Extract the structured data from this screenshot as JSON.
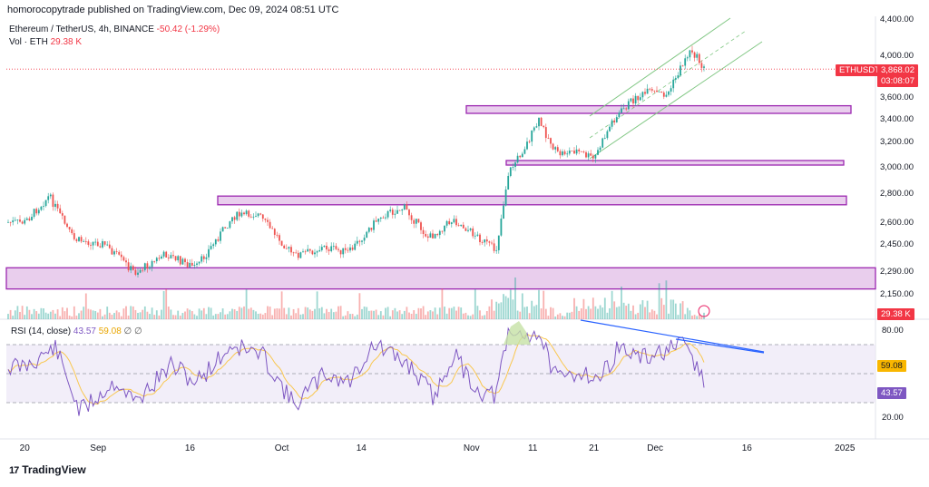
{
  "header": {
    "publisher_line": "homorocopytrade published on TradingView.com, Dec 09, 2024 08:51 UTC",
    "symbol_line": "Ethereum / TetherUS, 4h, BINANCE",
    "change": "-50.42 (-1.29%)",
    "volume_label": "Vol · ETH",
    "volume_value": "29.38 K"
  },
  "rsi_legend": {
    "label": "RSI (14, close)",
    "rsi_value": "43.57",
    "ma_value": "59.08",
    "extra": "∅ ∅"
  },
  "badges": {
    "symbol": "ETHUSDT",
    "price": "3,868.02",
    "countdown": "03:08:07",
    "volume": "29.38 K",
    "rsi": "43.57",
    "rsi_ma": "59.08"
  },
  "branding": {
    "logo_text": "TradingView",
    "logo_mark": "17"
  },
  "colors": {
    "up": "#26a69a",
    "down": "#ef5350",
    "zone_fill": "#e1bee7",
    "zone_border": "#9c27b0",
    "channel": "#81c784",
    "trendline": "#2962ff",
    "rsi_line": "#7e57c2",
    "rsi_ma": "#f9c74f"
  },
  "chart_data": [
    {
      "type": "candlestick",
      "title": "Ethereum / TetherUS, 4h, BINANCE",
      "x_tick_labels": [
        "20",
        "Sep",
        "16",
        "Oct",
        "14",
        "Nov",
        "11",
        "21",
        "Dec",
        "16",
        "2025"
      ],
      "y_tick_labels": [
        "4,400.00",
        "4,000.00",
        "3,600.00",
        "3,400.00",
        "3,200.00",
        "3,000.00",
        "2,800.00",
        "2,600.00",
        "2,450.00",
        "2,290.00",
        "2,150.00"
      ],
      "y_ticks": [
        4400,
        4000,
        3600,
        3400,
        3200,
        3000,
        2800,
        2600,
        2450,
        2290,
        2150
      ],
      "price_path": [
        {
          "date": "2024-08-20",
          "close": 2600
        },
        {
          "date": "2024-08-24",
          "close": 2780
        },
        {
          "date": "2024-08-28",
          "close": 2480
        },
        {
          "date": "2024-09-02",
          "close": 2450
        },
        {
          "date": "2024-09-07",
          "close": 2280
        },
        {
          "date": "2024-09-12",
          "close": 2390
        },
        {
          "date": "2024-09-17",
          "close": 2310
        },
        {
          "date": "2024-09-23",
          "close": 2640
        },
        {
          "date": "2024-09-27",
          "close": 2660
        },
        {
          "date": "2024-10-03",
          "close": 2380
        },
        {
          "date": "2024-10-08",
          "close": 2430
        },
        {
          "date": "2024-10-12",
          "close": 2400
        },
        {
          "date": "2024-10-17",
          "close": 2640
        },
        {
          "date": "2024-10-21",
          "close": 2700
        },
        {
          "date": "2024-10-25",
          "close": 2490
        },
        {
          "date": "2024-10-29",
          "close": 2620
        },
        {
          "date": "2024-11-02",
          "close": 2500
        },
        {
          "date": "2024-11-05",
          "close": 2410
        },
        {
          "date": "2024-11-07",
          "close": 2950
        },
        {
          "date": "2024-11-10",
          "close": 3180
        },
        {
          "date": "2024-11-12",
          "close": 3380
        },
        {
          "date": "2024-11-15",
          "close": 3100
        },
        {
          "date": "2024-11-18",
          "close": 3130
        },
        {
          "date": "2024-11-21",
          "close": 3060
        },
        {
          "date": "2024-11-24",
          "close": 3380
        },
        {
          "date": "2024-11-27",
          "close": 3560
        },
        {
          "date": "2024-11-30",
          "close": 3650
        },
        {
          "date": "2024-12-03",
          "close": 3620
        },
        {
          "date": "2024-12-06",
          "close": 3980
        },
        {
          "date": "2024-12-07",
          "close": 4060
        },
        {
          "date": "2024-12-09",
          "close": 3868.02
        }
      ],
      "zones": [
        {
          "from": 3450,
          "to": 3520
        },
        {
          "from": 3020,
          "to": 3050
        },
        {
          "from": 2720,
          "to": 2780
        },
        {
          "from": 2180,
          "to": 2310
        }
      ],
      "volume_last": "29.38 K"
    },
    {
      "type": "line",
      "title": "RSI (14, close)",
      "y_tick_labels": [
        "80.00",
        "20.00"
      ],
      "y_ticks": [
        80,
        20
      ],
      "bands": [
        30,
        70
      ],
      "rsi_path": [
        {
          "date": "2024-08-20",
          "value": 55
        },
        {
          "date": "2024-08-25",
          "value": 68
        },
        {
          "date": "2024-08-29",
          "value": 24
        },
        {
          "date": "2024-09-04",
          "value": 45
        },
        {
          "date": "2024-09-07",
          "value": 30
        },
        {
          "date": "2024-09-13",
          "value": 56
        },
        {
          "date": "2024-09-17",
          "value": 44
        },
        {
          "date": "2024-09-23",
          "value": 70
        },
        {
          "date": "2024-09-28",
          "value": 62
        },
        {
          "date": "2024-10-03",
          "value": 28
        },
        {
          "date": "2024-10-08",
          "value": 50
        },
        {
          "date": "2024-10-12",
          "value": 44
        },
        {
          "date": "2024-10-16",
          "value": 70
        },
        {
          "date": "2024-10-22",
          "value": 55
        },
        {
          "date": "2024-10-26",
          "value": 33
        },
        {
          "date": "2024-10-29",
          "value": 64
        },
        {
          "date": "2024-11-02",
          "value": 38
        },
        {
          "date": "2024-11-05",
          "value": 35
        },
        {
          "date": "2024-11-07",
          "value": 76
        },
        {
          "date": "2024-11-12",
          "value": 78
        },
        {
          "date": "2024-11-15",
          "value": 45
        },
        {
          "date": "2024-11-19",
          "value": 52
        },
        {
          "date": "2024-11-22",
          "value": 46
        },
        {
          "date": "2024-11-25",
          "value": 68
        },
        {
          "date": "2024-11-29",
          "value": 60
        },
        {
          "date": "2024-12-02",
          "value": 65
        },
        {
          "date": "2024-12-06",
          "value": 69
        },
        {
          "date": "2024-12-07",
          "value": 62
        },
        {
          "date": "2024-12-09",
          "value": 43.57
        }
      ],
      "last_value": 43.57,
      "ma_last_value": 59.08
    }
  ]
}
